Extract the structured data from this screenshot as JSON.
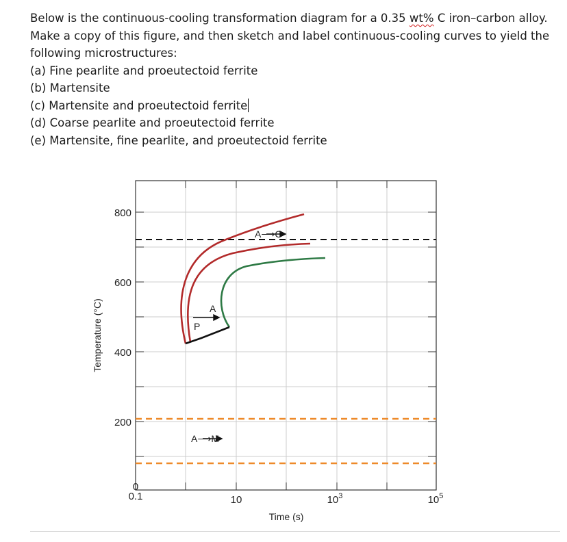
{
  "question": {
    "intro_before": "Below is the continuous-cooling transformation diagram for a 0.35 ",
    "intro_unit": "wt%",
    "intro_after": " C iron–carbon alloy. Make a copy of this figure, and then sketch and label continuous-cooling curves to yield the following microstructures:",
    "items": [
      "(a) Fine pearlite and proeutectoid ferrite",
      "(b) Martensite",
      "(c) Martensite and proeutectoid ferrite",
      "(d) Coarse pearlite and proeutectoid ferrite",
      "(e) Martensite, fine pearlite, and proeutectoid ferrite"
    ]
  },
  "diagram": {
    "y_axis_label": "Temperature (°C)",
    "x_axis_label": "Time (s)",
    "y_ticks": [
      "800",
      "600",
      "400",
      "200",
      "0"
    ],
    "x_ticks": [
      {
        "base": "0.1",
        "exp": ""
      },
      {
        "base": "10",
        "exp": ""
      },
      {
        "base": "10",
        "exp": "3"
      },
      {
        "base": "10",
        "exp": "5"
      }
    ],
    "annotations": {
      "austenite_to_cementite": "A⟶C",
      "pearlite": "P",
      "austenite": "A",
      "austenite_to_martensite": "A⟶M"
    },
    "colors": {
      "pearlite_curves": "#b22a2a",
      "ferrite_curve": "#2e7a45",
      "bainite_boundary": "#111111",
      "martensite_lines": "#ee8a2a",
      "eutectoid_line": "#111111",
      "grid": "#cccccc"
    }
  }
}
